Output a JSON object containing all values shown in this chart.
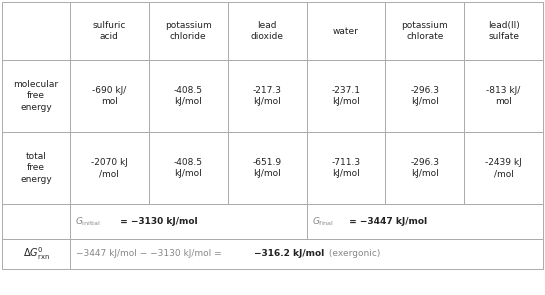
{
  "col_headers": [
    "sulfuric\nacid",
    "potassium\nchloride",
    "lead\ndioxide",
    "water",
    "potassium\nchlorate",
    "lead(II)\nsulfate"
  ],
  "mol_free_energy": [
    "-690 kJ/\nmol",
    "-408.5\nkJ/mol",
    "-217.3\nkJ/mol",
    "-237.1\nkJ/mol",
    "-296.3\nkJ/mol",
    "-813 kJ/\nmol"
  ],
  "total_free_energy": [
    "-2070 kJ\n/mol",
    "-408.5\nkJ/mol",
    "-651.9\nkJ/mol",
    "-711.3\nkJ/mol",
    "-296.3\nkJ/mol",
    "-2439 kJ\n/mol"
  ],
  "row_label_0": "",
  "row_label_1": "molecular\nfree\nenergy",
  "row_label_2": "total\nfree\nenergy",
  "row_label_3": "",
  "row_label_4": "",
  "g_initial_value": " = −3130 kJ/mol",
  "g_final_value": " = −3447 kJ/mol",
  "delta_g_prefix": "−3447 kJ/mol − −3130 kJ/mol = ",
  "delta_g_bold": "−316.2 kJ/mol",
  "delta_g_suffix": " (exergonic)",
  "background_color": "#ffffff",
  "edge_color": "#aaaaaa",
  "text_color": "#222222",
  "gray_color": "#888888"
}
